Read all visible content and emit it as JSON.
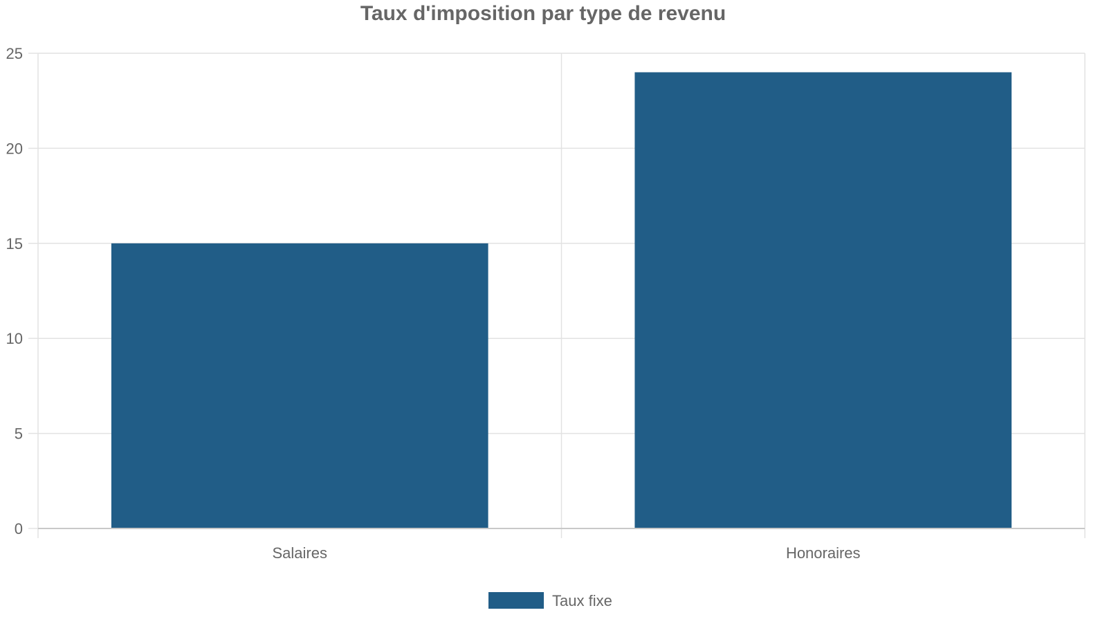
{
  "chart_data": {
    "type": "bar",
    "title": "Taux d'imposition par type de revenu",
    "xlabel": "",
    "ylabel": "",
    "categories": [
      "Salaires",
      "Honoraires"
    ],
    "series": [
      {
        "name": "Taux fixe",
        "values": [
          15,
          24
        ],
        "color": "#215d87"
      }
    ],
    "ylim": [
      0,
      25
    ],
    "yticks": [
      "0",
      "5",
      "10",
      "15",
      "20",
      "25"
    ],
    "grid": true,
    "legend_position": "bottom"
  }
}
